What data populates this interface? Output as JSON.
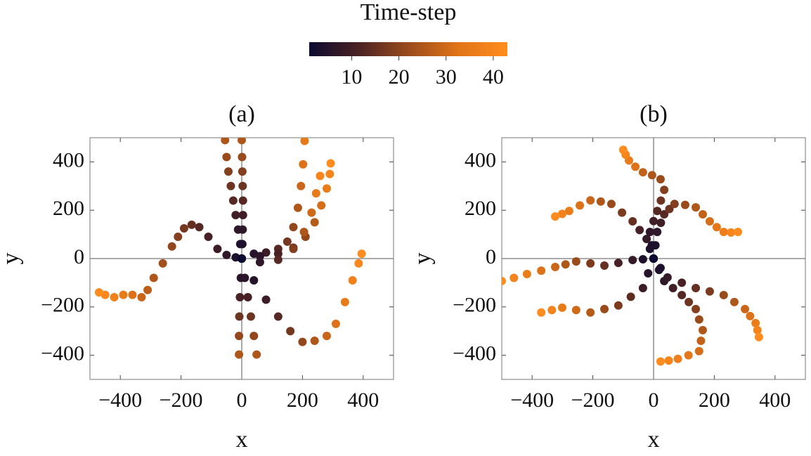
{
  "chart_data": [
    {
      "type": "colorbar",
      "title": "Time-step",
      "clim": [
        1,
        43
      ],
      "ticks": [
        10,
        20,
        30,
        40
      ],
      "colors": [
        "#0c0a30",
        "#4a2224",
        "#9a4b1c",
        "#e07418",
        "#ff8c1e"
      ]
    },
    {
      "type": "scatter",
      "title": "(a)",
      "xlabel": "x",
      "ylabel": "y",
      "xlim": [
        -500,
        500
      ],
      "ylim": [
        -500,
        500
      ],
      "xticks": [
        {
          "value": -400,
          "label": "−400"
        },
        {
          "value": -200,
          "label": "−200"
        },
        0,
        200,
        400
      ],
      "yticks": [
        {
          "value": -400,
          "label": "−400"
        },
        {
          "value": -200,
          "label": "−200"
        },
        0,
        200,
        400
      ],
      "series": [
        {
          "x": [
            0,
            -20,
            -50,
            -80,
            -110,
            -140,
            -165,
            -190,
            -210,
            -230,
            -260,
            -290,
            -310,
            -330,
            -360,
            -390,
            -420,
            -450,
            -470
          ],
          "values": [
            0,
            5,
            15,
            40,
            90,
            130,
            140,
            125,
            90,
            50,
            -20,
            -80,
            -130,
            -160,
            -150,
            -150,
            -160,
            -150,
            -140
          ],
          "t": [
            1,
            4,
            7,
            9,
            11,
            13,
            15,
            17,
            19,
            21,
            23,
            25,
            27,
            29,
            32,
            35,
            38,
            41,
            43
          ]
        },
        {
          "x": [
            0,
            -5,
            -12,
            -20,
            -28,
            -36,
            -44,
            -50,
            -55
          ],
          "values": [
            0,
            60,
            120,
            180,
            240,
            300,
            360,
            420,
            490
          ],
          "t": [
            1,
            4,
            7,
            10,
            13,
            16,
            19,
            22,
            25
          ]
        },
        {
          "x": [
            0,
            2,
            3,
            4,
            4,
            3,
            2,
            1,
            0
          ],
          "values": [
            0,
            60,
            120,
            180,
            240,
            300,
            360,
            420,
            490
          ],
          "t": [
            1,
            4,
            7,
            10,
            13,
            16,
            19,
            22,
            25
          ]
        },
        {
          "x": [
            0,
            40,
            80,
            120,
            150,
            170,
            185,
            195,
            202,
            207
          ],
          "values": [
            0,
            20,
            25,
            40,
            70,
            130,
            210,
            300,
            390,
            487
          ],
          "t": [
            1,
            5,
            9,
            13,
            17,
            21,
            25,
            29,
            32,
            35
          ]
        },
        {
          "x": [
            0,
            60,
            120,
            170,
            210,
            240,
            262,
            280,
            290,
            293
          ],
          "values": [
            0,
            10,
            20,
            45,
            90,
            150,
            220,
            290,
            350,
            394
          ],
          "t": [
            1,
            6,
            11,
            16,
            21,
            26,
            31,
            36,
            40,
            43
          ]
        },
        {
          "x": [
            0,
            60,
            120,
            170,
            205,
            230,
            245,
            258
          ],
          "values": [
            0,
            -15,
            -5,
            40,
            110,
            190,
            270,
            342
          ],
          "t": [
            1,
            7,
            13,
            19,
            25,
            30,
            35,
            40
          ]
        },
        {
          "x": [
            0,
            -3,
            -6,
            -8,
            -9,
            -9
          ],
          "values": [
            0,
            -80,
            -160,
            -240,
            -320,
            -397
          ],
          "t": [
            1,
            6,
            11,
            16,
            21,
            25
          ]
        },
        {
          "x": [
            0,
            10,
            20,
            30,
            40,
            49
          ],
          "values": [
            0,
            -80,
            -160,
            -240,
            -320,
            -397
          ],
          "t": [
            1,
            6,
            11,
            16,
            21,
            25
          ]
        },
        {
          "x": [
            0,
            40,
            80,
            120,
            160,
            200,
            240,
            280,
            310,
            340,
            365,
            385,
            395
          ],
          "values": [
            0,
            -90,
            -170,
            -240,
            -300,
            -345,
            -340,
            -320,
            -270,
            -180,
            -90,
            -20,
            20
          ],
          "t": [
            1,
            5,
            9,
            13,
            17,
            21,
            25,
            29,
            32,
            35,
            38,
            41,
            43
          ]
        }
      ]
    },
    {
      "type": "scatter",
      "title": "(b)",
      "xlabel": "x",
      "ylabel": "y",
      "xlim": [
        -500,
        500
      ],
      "ylim": [
        -500,
        500
      ],
      "xticks": [
        {
          "value": -400,
          "label": "−400"
        },
        {
          "value": -200,
          "label": "−200"
        },
        0,
        200,
        400
      ],
      "yticks": [
        {
          "value": -400,
          "label": "−400"
        },
        {
          "value": -200,
          "label": "−200"
        },
        0,
        200,
        400
      ],
      "series": [
        {
          "x": [
            0,
            -6,
            -12,
            0,
            12,
            24,
            35,
            23,
            -5,
            -35,
            -60,
            -81,
            -92,
            -100
          ],
          "values": [
            0,
            55,
            110,
            155,
            197,
            240,
            284,
            328,
            345,
            357,
            380,
            406,
            430,
            450
          ],
          "t": [
            1,
            4,
            7,
            10,
            13,
            16,
            19,
            22,
            25,
            28,
            32,
            36,
            40,
            43
          ]
        },
        {
          "x": [
            0,
            6,
            12,
            24,
            35,
            52,
            69,
            104,
            139,
            162,
            185,
            208,
            231,
            255,
            278
          ],
          "values": [
            0,
            55,
            110,
            148,
            183,
            205,
            226,
            222,
            212,
            183,
            154,
            130,
            110,
            108,
            110
          ],
          "t": [
            1,
            4,
            7,
            10,
            13,
            16,
            19,
            22,
            25,
            28,
            31,
            34,
            37,
            40,
            43
          ]
        },
        {
          "x": [
            0,
            -12,
            -23,
            -46,
            -69,
            -104,
            -139,
            -174,
            -208,
            -243,
            -278,
            -301,
            -324
          ],
          "values": [
            0,
            40,
            81,
            118,
            154,
            190,
            226,
            236,
            241,
            220,
            197,
            185,
            174
          ],
          "t": [
            1,
            4,
            8,
            11,
            15,
            18,
            22,
            25,
            29,
            32,
            36,
            39,
            43
          ]
        },
        {
          "x": [
            0,
            -35,
            -69,
            -116,
            -162,
            -208,
            -255,
            -290,
            -324,
            -370,
            -417,
            -460,
            -500
          ],
          "values": [
            0,
            -3,
            -6,
            -18,
            -29,
            -20,
            -12,
            -24,
            -35,
            -50,
            -64,
            -80,
            -93
          ],
          "t": [
            1,
            4,
            8,
            11,
            15,
            18,
            22,
            25,
            29,
            32,
            36,
            39,
            43
          ]
        },
        {
          "x": [
            0,
            -18,
            -35,
            -75,
            -116,
            -162,
            -208,
            -255,
            -301,
            -335,
            -370
          ],
          "values": [
            0,
            -61,
            -122,
            -158,
            -194,
            -209,
            -223,
            -213,
            -203,
            -213,
            -223
          ],
          "t": [
            1,
            5,
            9,
            14,
            18,
            22,
            26,
            30,
            35,
            39,
            43
          ]
        },
        {
          "x": [
            0,
            18,
            35,
            64,
            93,
            116,
            139,
            150,
            162,
            156,
            150,
            115,
            80,
            50,
            23
          ],
          "values": [
            0,
            -47,
            -93,
            -122,
            -151,
            -180,
            -209,
            -252,
            -296,
            -340,
            -383,
            -400,
            -415,
            -422,
            -426
          ],
          "t": [
            1,
            4,
            7,
            10,
            13,
            16,
            19,
            22,
            25,
            28,
            31,
            34,
            37,
            40,
            43
          ]
        },
        {
          "x": [
            0,
            23,
            46,
            93,
            139,
            185,
            231,
            266,
            301,
            318,
            336,
            342,
            347
          ],
          "values": [
            0,
            -39,
            -78,
            -100,
            -122,
            -136,
            -151,
            -180,
            -209,
            -238,
            -267,
            -296,
            -325
          ],
          "t": [
            1,
            4,
            8,
            11,
            15,
            18,
            22,
            25,
            29,
            32,
            36,
            39,
            43
          ]
        }
      ]
    }
  ]
}
